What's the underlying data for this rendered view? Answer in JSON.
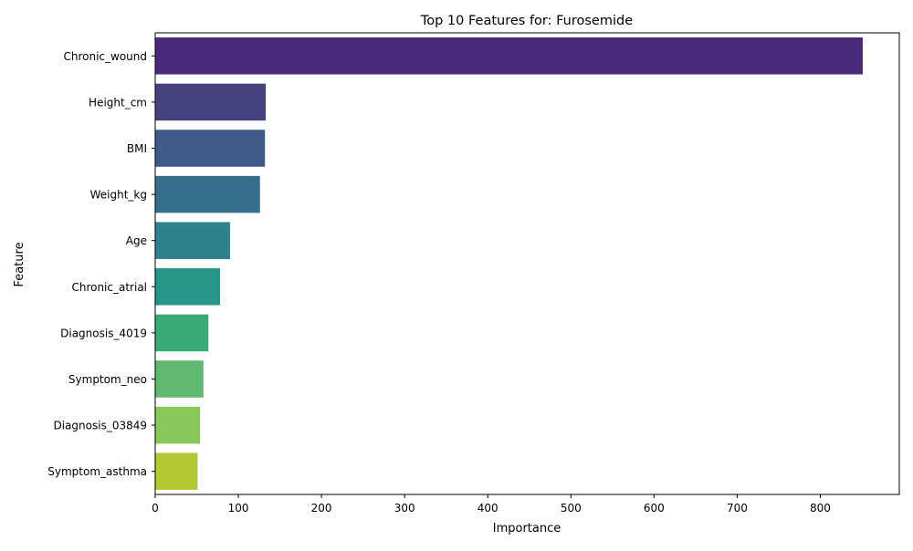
{
  "chart_data": {
    "type": "bar",
    "orientation": "horizontal",
    "title": "Top 10 Features for: Furosemide",
    "xlabel": "Importance",
    "ylabel": "Feature",
    "categories": [
      "Chronic_wound",
      "Height_cm",
      "BMI",
      "Weight_kg",
      "Age",
      "Chronic_atrial",
      "Diagnosis_4019",
      "Symptom_neo",
      "Diagnosis_03849",
      "Symptom_asthma"
    ],
    "values": [
      851,
      133,
      132,
      126,
      90,
      78,
      64,
      58,
      54,
      51
    ],
    "colors": [
      "#482878",
      "#46427e",
      "#3e5a89",
      "#366f8b",
      "#2e828c",
      "#26958a",
      "#39aa75",
      "#61b870",
      "#88c75a",
      "#b3c832"
    ],
    "xlim": [
      0,
      895
    ],
    "xticks": [
      0,
      100,
      200,
      300,
      400,
      500,
      600,
      700,
      800
    ],
    "grid": false,
    "legend": "none"
  }
}
